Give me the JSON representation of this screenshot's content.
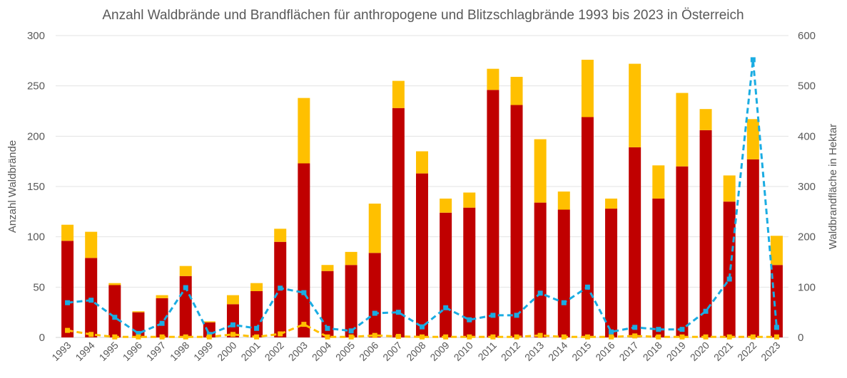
{
  "chart_data": {
    "type": "bar",
    "title": "Anzahl Waldbrände und Brandflächen für anthropogene und Blitzschlagbrände 1993 bis 2023 in Österreich",
    "ylabel": "Anzahl Waldbrände",
    "y2label": "Waldbrandfläche in Hektar",
    "ylim": [
      0,
      300
    ],
    "y2lim": [
      0,
      600
    ],
    "yticks": [
      0,
      50,
      100,
      150,
      200,
      250,
      300
    ],
    "y2ticks": [
      0,
      100,
      200,
      300,
      400,
      500,
      600
    ],
    "grid": true,
    "stacked": true,
    "categories": [
      "1993",
      "1994",
      "1995",
      "1996",
      "1997",
      "1998",
      "1999",
      "2000",
      "2001",
      "2002",
      "2003",
      "2004",
      "2005",
      "2006",
      "2007",
      "2008",
      "2009",
      "2010",
      "2011",
      "2012",
      "2013",
      "2014",
      "2015",
      "2016",
      "2017",
      "2018",
      "2019",
      "2020",
      "2021",
      "2022",
      "2023"
    ],
    "series": [
      {
        "kind": "bar",
        "axis": "left",
        "color": "#C00000",
        "values": [
          96,
          79,
          52,
          25,
          39,
          61,
          15,
          33,
          46,
          95,
          173,
          66,
          72,
          84,
          228,
          163,
          124,
          129,
          246,
          231,
          134,
          127,
          219,
          128,
          189,
          138,
          170,
          206,
          135,
          177,
          72
        ]
      },
      {
        "kind": "bar",
        "axis": "left",
        "color": "#FFC000",
        "values": [
          16,
          26,
          2,
          1,
          3,
          10,
          1,
          9,
          8,
          13,
          65,
          6,
          13,
          49,
          27,
          22,
          14,
          15,
          21,
          28,
          63,
          18,
          57,
          10,
          83,
          33,
          73,
          21,
          26,
          40,
          29
        ]
      },
      {
        "kind": "line",
        "axis": "right",
        "color": "#1AACE2",
        "dashed": true,
        "values": [
          69,
          74,
          40,
          8,
          28,
          99,
          6,
          25,
          18,
          98,
          89,
          18,
          13,
          48,
          50,
          21,
          59,
          35,
          44,
          44,
          88,
          69,
          100,
          11,
          20,
          16,
          16,
          52,
          116,
          552,
          20
        ]
      },
      {
        "kind": "line",
        "axis": "right",
        "color": "#FFC000",
        "dashed": true,
        "values": [
          14,
          6,
          1,
          1,
          1,
          1,
          1,
          6,
          1,
          7,
          26,
          1,
          1,
          4,
          2,
          1,
          1,
          1,
          1,
          1,
          4,
          1,
          1,
          1,
          3,
          1,
          1,
          1,
          1,
          1,
          1
        ]
      }
    ]
  }
}
